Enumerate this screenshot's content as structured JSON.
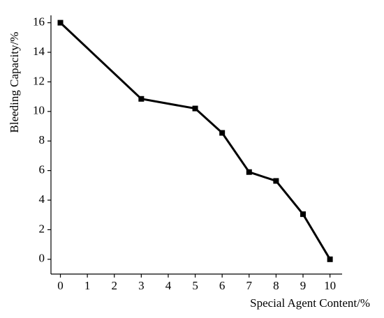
{
  "chart_data": {
    "type": "line",
    "xlabel": "Special Agent Content/%",
    "ylabel": "Bleeding Capacity/%",
    "x": [
      0,
      3,
      5,
      6,
      7,
      8,
      9,
      10
    ],
    "series": [
      {
        "color": "#000000",
        "values": [
          16,
          10.85,
          10.2,
          8.55,
          5.9,
          5.3,
          3.05,
          0
        ]
      }
    ],
    "xlim": [
      -0.35,
      10.45
    ],
    "ylim": [
      -1,
      16.5
    ],
    "xticks": [
      0,
      1,
      2,
      3,
      4,
      5,
      6,
      7,
      8,
      9,
      10
    ],
    "yticks": [
      0,
      2,
      4,
      6,
      8,
      10,
      12,
      14,
      16
    ],
    "grid": false
  }
}
